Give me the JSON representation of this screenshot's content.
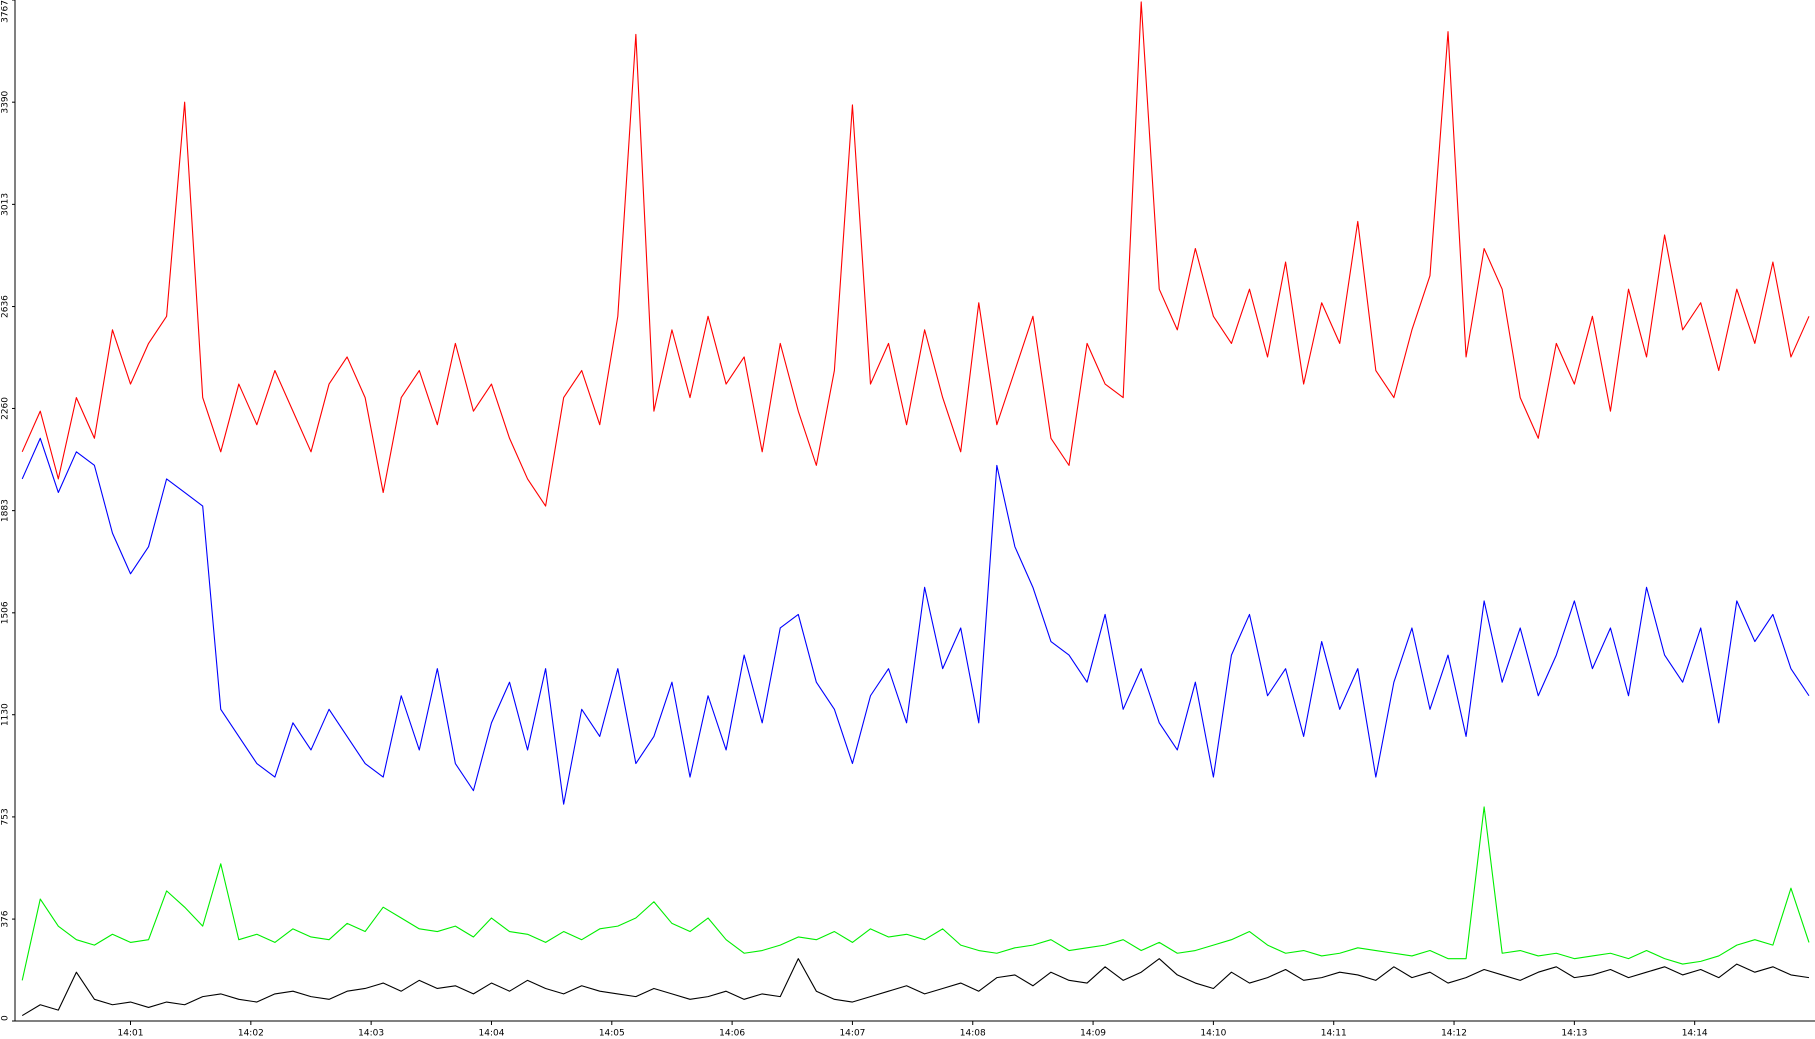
{
  "chart_data": {
    "type": "line",
    "x": [
      0.1,
      0.25,
      0.4,
      0.55,
      0.7,
      0.85,
      1.0,
      1.15,
      1.3,
      1.45,
      1.6,
      1.75,
      1.9,
      2.05,
      2.2,
      2.35,
      2.5,
      2.65,
      2.8,
      2.95,
      3.1,
      3.25,
      3.4,
      3.55,
      3.7,
      3.85,
      4.0,
      4.15,
      4.3,
      4.45,
      4.6,
      4.75,
      4.9,
      5.05,
      5.2,
      5.35,
      5.5,
      5.65,
      5.8,
      5.95,
      6.1,
      6.25,
      6.4,
      6.55,
      6.7,
      6.85,
      7.0,
      7.15,
      7.3,
      7.45,
      7.6,
      7.75,
      7.9,
      8.05,
      8.2,
      8.35,
      8.5,
      8.65,
      8.8,
      8.95,
      9.1,
      9.25,
      9.4,
      9.55,
      9.7,
      9.85,
      10.0,
      10.15,
      10.3,
      10.45,
      10.6,
      10.75,
      10.9,
      11.05,
      11.2,
      11.35,
      11.5,
      11.65,
      11.8,
      11.95,
      12.1,
      12.25,
      12.4,
      12.55,
      12.7,
      12.85,
      13.0,
      13.15,
      13.3,
      13.45,
      13.6,
      13.75,
      13.9,
      14.05,
      14.2,
      14.35,
      14.5,
      14.65,
      14.8,
      14.95
    ],
    "series": [
      {
        "color": "#ff0000",
        "values": [
          2100,
          2250,
          2000,
          2300,
          2150,
          2550,
          2350,
          2500,
          2600,
          3390,
          2300,
          2100,
          2350,
          2200,
          2400,
          2250,
          2100,
          2350,
          2450,
          2300,
          1950,
          2300,
          2400,
          2200,
          2500,
          2250,
          2350,
          2150,
          2000,
          1900,
          2300,
          2400,
          2200,
          2600,
          3640,
          2250,
          2550,
          2300,
          2600,
          2350,
          2450,
          2100,
          2500,
          2250,
          2050,
          2400,
          3380,
          2350,
          2500,
          2200,
          2550,
          2300,
          2100,
          2650,
          2200,
          2400,
          2600,
          2150,
          2050,
          2500,
          2350,
          2300,
          3760,
          2700,
          2550,
          2850,
          2600,
          2500,
          2700,
          2450,
          2800,
          2350,
          2650,
          2500,
          2950,
          2400,
          2300,
          2550,
          2750,
          3650,
          2450,
          2850,
          2700,
          2300,
          2150,
          2500,
          2350,
          2600,
          2250,
          2700,
          2450,
          2900,
          2550,
          2650,
          2400,
          2700,
          2500,
          2800,
          2450,
          2600
        ]
      },
      {
        "color": "#0000ff",
        "values": [
          2000,
          2150,
          1950,
          2100,
          2050,
          1800,
          1650,
          1750,
          2000,
          1950,
          1900,
          1150,
          1050,
          950,
          900,
          1100,
          1000,
          1150,
          1050,
          950,
          900,
          1200,
          1000,
          1300,
          950,
          850,
          1100,
          1250,
          1000,
          1300,
          800,
          1150,
          1050,
          1300,
          950,
          1050,
          1250,
          900,
          1200,
          1000,
          1350,
          1100,
          1450,
          1500,
          1250,
          1150,
          950,
          1200,
          1300,
          1100,
          1600,
          1300,
          1450,
          1100,
          2050,
          1750,
          1600,
          1400,
          1350,
          1250,
          1500,
          1150,
          1300,
          1100,
          1000,
          1250,
          900,
          1350,
          1500,
          1200,
          1300,
          1050,
          1400,
          1150,
          1300,
          900,
          1250,
          1450,
          1150,
          1350,
          1050,
          1550,
          1250,
          1450,
          1200,
          1350,
          1550,
          1300,
          1450,
          1200,
          1600,
          1350,
          1250,
          1450,
          1100,
          1550,
          1400,
          1500,
          1300,
          1200
        ]
      },
      {
        "color": "#00ee00",
        "values": [
          150,
          450,
          350,
          300,
          280,
          320,
          290,
          300,
          480,
          420,
          350,
          580,
          300,
          320,
          290,
          340,
          310,
          300,
          360,
          330,
          420,
          380,
          340,
          330,
          350,
          310,
          380,
          330,
          320,
          290,
          330,
          300,
          340,
          350,
          380,
          440,
          360,
          330,
          380,
          300,
          250,
          260,
          280,
          310,
          300,
          330,
          290,
          340,
          310,
          320,
          300,
          340,
          280,
          260,
          250,
          270,
          280,
          300,
          260,
          270,
          280,
          300,
          260,
          290,
          250,
          260,
          280,
          300,
          330,
          280,
          250,
          260,
          240,
          250,
          270,
          260,
          250,
          240,
          260,
          230,
          230,
          790,
          250,
          260,
          240,
          250,
          230,
          240,
          250,
          230,
          260,
          230,
          210,
          220,
          240,
          280,
          300,
          280,
          490,
          290
        ]
      },
      {
        "color": "#000000",
        "values": [
          20,
          60,
          40,
          180,
          80,
          60,
          70,
          50,
          70,
          60,
          90,
          100,
          80,
          70,
          100,
          110,
          90,
          80,
          110,
          120,
          140,
          110,
          150,
          120,
          130,
          100,
          140,
          110,
          150,
          120,
          100,
          130,
          110,
          100,
          90,
          120,
          100,
          80,
          90,
          110,
          80,
          100,
          90,
          230,
          110,
          80,
          70,
          90,
          110,
          130,
          100,
          120,
          140,
          110,
          160,
          170,
          130,
          180,
          150,
          140,
          200,
          150,
          180,
          230,
          170,
          140,
          120,
          180,
          140,
          160,
          190,
          150,
          160,
          180,
          170,
          150,
          200,
          160,
          180,
          140,
          160,
          190,
          170,
          150,
          180,
          200,
          160,
          170,
          190,
          160,
          180,
          200,
          170,
          190,
          160,
          210,
          180,
          200,
          170,
          160
        ]
      }
    ],
    "xlim": [
      0.04,
      15
    ],
    "xticks": [
      {
        "value": 1,
        "label": "14:01"
      },
      {
        "value": 2,
        "label": "14:02"
      },
      {
        "value": 3,
        "label": "14:03"
      },
      {
        "value": 4,
        "label": "14:04"
      },
      {
        "value": 5,
        "label": "14:05"
      },
      {
        "value": 6,
        "label": "14:06"
      },
      {
        "value": 7,
        "label": "14:07"
      },
      {
        "value": 8,
        "label": "14:08"
      },
      {
        "value": 9,
        "label": "14:09"
      },
      {
        "value": 10,
        "label": "14:10"
      },
      {
        "value": 11,
        "label": "14:11"
      },
      {
        "value": 12,
        "label": "14:12"
      },
      {
        "value": 13,
        "label": "14:13"
      },
      {
        "value": 14,
        "label": "14:14"
      }
    ],
    "ylim": [
      0,
      3767
    ],
    "yticks": [
      0,
      376,
      753,
      1130,
      1506,
      1883,
      2260,
      2636,
      3013,
      3390,
      3767
    ],
    "grid": false
  }
}
